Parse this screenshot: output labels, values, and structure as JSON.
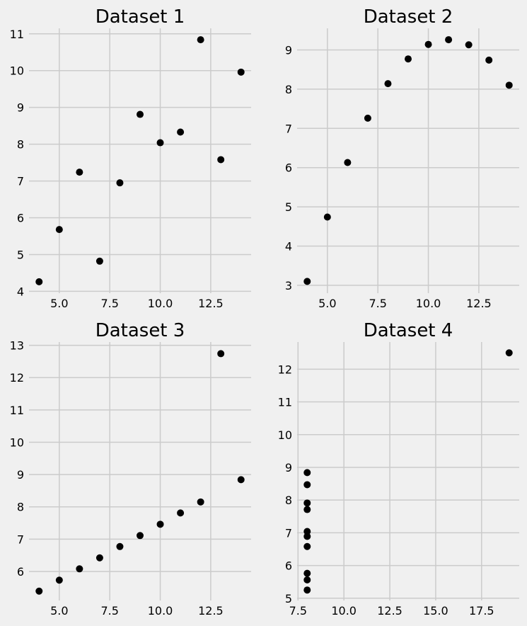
{
  "chart_data": [
    {
      "type": "scatter",
      "title": "Dataset 1",
      "xlabel": "",
      "ylabel": "",
      "xlim": [
        3.5,
        14.5
      ],
      "ylim": [
        3.95,
        11.15
      ],
      "xticks": [
        5.0,
        7.5,
        10.0,
        12.5
      ],
      "xtick_labels": [
        "5.0",
        "7.5",
        "10.0",
        "12.5"
      ],
      "yticks": [
        4,
        5,
        6,
        7,
        8,
        9,
        10,
        11
      ],
      "ytick_labels": [
        "4",
        "5",
        "6",
        "7",
        "8",
        "9",
        "10",
        "11"
      ],
      "grid": true,
      "marker_color": "#000000",
      "x": [
        10,
        8,
        13,
        9,
        11,
        14,
        6,
        4,
        12,
        7,
        5
      ],
      "y": [
        8.04,
        6.95,
        7.58,
        8.81,
        8.33,
        9.96,
        7.24,
        4.26,
        10.84,
        4.82,
        5.68
      ]
    },
    {
      "type": "scatter",
      "title": "Dataset 2",
      "xlabel": "",
      "ylabel": "",
      "xlim": [
        3.5,
        14.5
      ],
      "ylim": [
        2.8,
        9.55
      ],
      "xticks": [
        5.0,
        7.5,
        10.0,
        12.5
      ],
      "xtick_labels": [
        "5.0",
        "7.5",
        "10.0",
        "12.5"
      ],
      "yticks": [
        3,
        4,
        5,
        6,
        7,
        8,
        9
      ],
      "ytick_labels": [
        "3",
        "4",
        "5",
        "6",
        "7",
        "8",
        "9"
      ],
      "grid": true,
      "marker_color": "#000000",
      "x": [
        10,
        8,
        13,
        9,
        11,
        14,
        6,
        4,
        12,
        7,
        5
      ],
      "y": [
        9.14,
        8.14,
        8.74,
        8.77,
        9.26,
        8.1,
        6.13,
        3.1,
        9.13,
        7.26,
        4.74
      ]
    },
    {
      "type": "scatter",
      "title": "Dataset 3",
      "xlabel": "",
      "ylabel": "",
      "xlim": [
        3.5,
        14.5
      ],
      "ylim": [
        5.1,
        13.1
      ],
      "xticks": [
        5.0,
        7.5,
        10.0,
        12.5
      ],
      "xtick_labels": [
        "5.0",
        "7.5",
        "10.0",
        "12.5"
      ],
      "yticks": [
        6,
        7,
        8,
        9,
        10,
        11,
        12,
        13
      ],
      "ytick_labels": [
        "6",
        "7",
        "8",
        "9",
        "10",
        "11",
        "12",
        "13"
      ],
      "grid": true,
      "marker_color": "#000000",
      "x": [
        10,
        8,
        13,
        9,
        11,
        14,
        6,
        4,
        12,
        7,
        5
      ],
      "y": [
        7.46,
        6.77,
        12.74,
        7.11,
        7.81,
        8.84,
        6.08,
        5.39,
        8.15,
        6.42,
        5.73
      ]
    },
    {
      "type": "scatter",
      "title": "Dataset 4",
      "xlabel": "",
      "ylabel": "",
      "xlim": [
        7.45,
        19.55
      ],
      "ylim": [
        4.93,
        12.83
      ],
      "xticks": [
        7.5,
        10.0,
        12.5,
        15.0,
        17.5
      ],
      "xtick_labels": [
        "7.5",
        "10.0",
        "12.5",
        "15.0",
        "17.5"
      ],
      "yticks": [
        5,
        6,
        7,
        8,
        9,
        10,
        11,
        12
      ],
      "ytick_labels": [
        "5",
        "6",
        "7",
        "8",
        "9",
        "10",
        "11",
        "12"
      ],
      "grid": true,
      "marker_color": "#000000",
      "x": [
        8,
        8,
        8,
        8,
        8,
        8,
        8,
        19,
        8,
        8,
        8
      ],
      "y": [
        6.58,
        5.76,
        7.71,
        8.84,
        8.47,
        7.04,
        5.25,
        12.5,
        5.56,
        7.91,
        6.89
      ]
    }
  ]
}
